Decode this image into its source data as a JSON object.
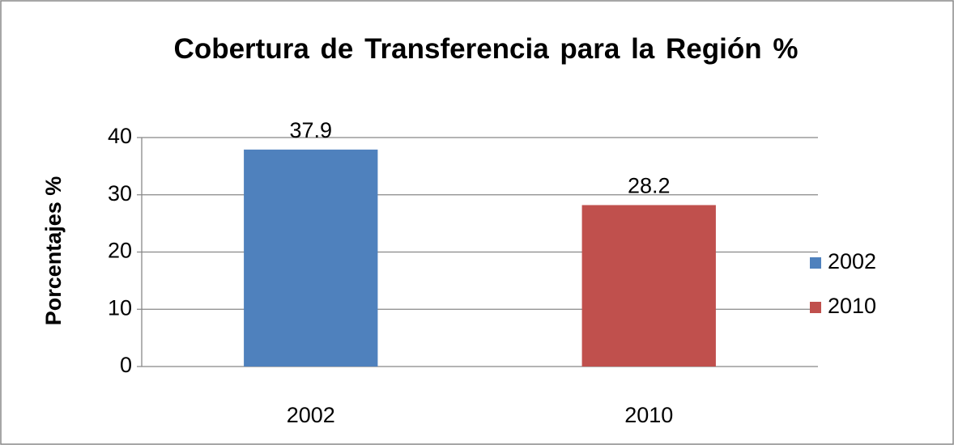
{
  "chart_data": {
    "type": "bar",
    "title": "Cobertura de Transferencia para la Región %",
    "ylabel": "Porcentajes %",
    "categories": [
      "2002",
      "2010"
    ],
    "values": [
      37.9,
      28.2
    ],
    "colors": [
      "#4f81bd",
      "#c0504d"
    ],
    "ylim": [
      0,
      40
    ],
    "yticks": [
      0,
      10,
      20,
      30,
      40
    ],
    "grid": true,
    "legend": "right"
  }
}
